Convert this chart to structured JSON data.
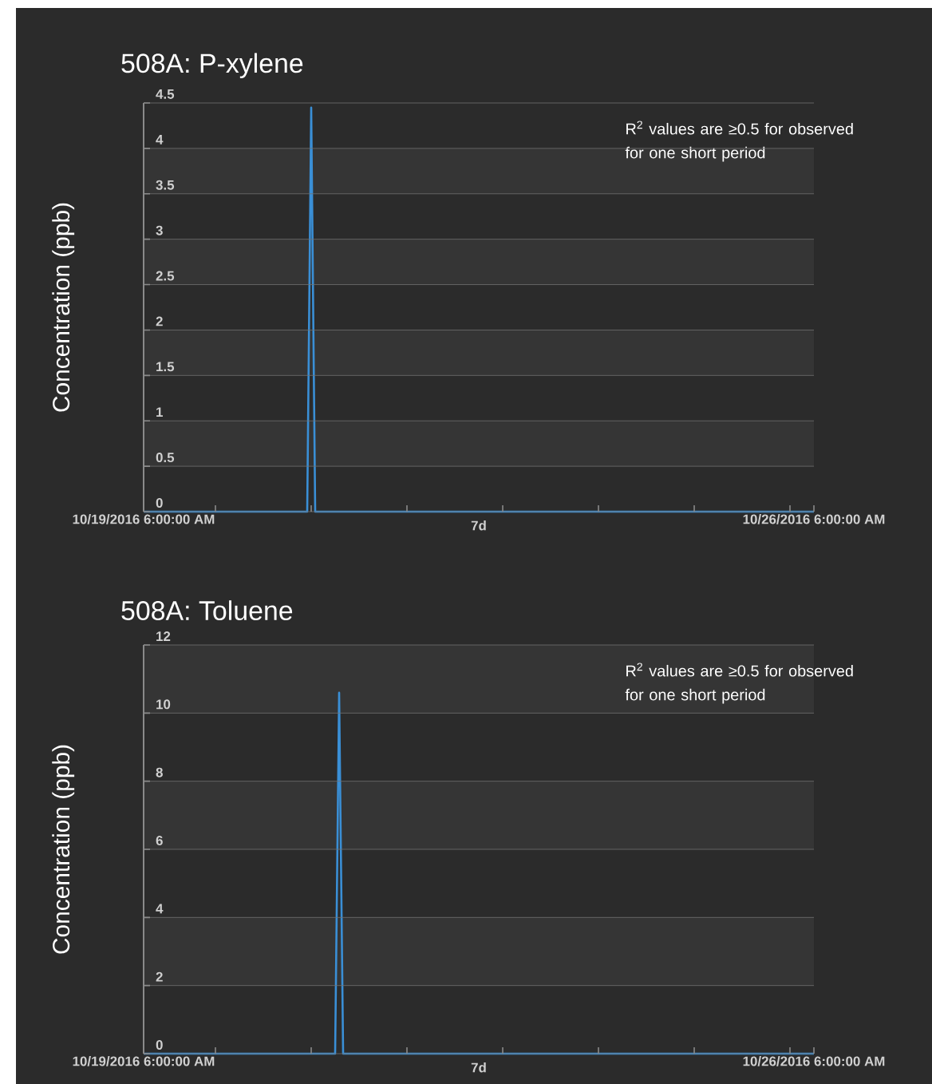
{
  "chart_data": [
    {
      "type": "line",
      "title": "508A: P-xylene",
      "xlabel": "7d",
      "ylabel": "Concentration (ppb)",
      "x": [
        "2016-10-19T06:00",
        "2016-10-20T23:00",
        "2016-10-21T00:00",
        "2016-10-21T01:00",
        "2016-10-26T06:00"
      ],
      "series": [
        {
          "color": "#3a8fd6",
          "values": [
            0,
            0,
            4.45,
            0,
            0
          ]
        }
      ],
      "xlim": [
        "2016-10-19T06:00",
        "2016-10-26T06:00"
      ],
      "xticks": [
        {
          "value": "2016-10-19T06:00",
          "label": "10/19/2016 6:00:00 AM"
        },
        {
          "value": "2016-10-20T00:00",
          "label": null
        },
        {
          "value": "2016-10-21T00:00",
          "label": null
        },
        {
          "value": "2016-10-22T00:00",
          "label": null
        },
        {
          "value": "2016-10-23T00:00",
          "label": null
        },
        {
          "value": "2016-10-24T00:00",
          "label": null
        },
        {
          "value": "2016-10-25T00:00",
          "label": null
        },
        {
          "value": "2016-10-26T00:00",
          "label": null
        },
        {
          "value": "2016-10-26T06:00",
          "label": "10/26/2016 6:00:00 AM"
        }
      ],
      "ylim": [
        0,
        4.5
      ],
      "yticks": [
        0,
        0.5,
        1,
        1.5,
        2,
        2.5,
        3,
        3.5,
        4,
        4.5
      ],
      "grid": "y",
      "line_style": "solid",
      "annotations": [
        "R$^{2}$ values are ≥0.5 for observed for one short period"
      ]
    },
    {
      "type": "line",
      "title": "508A: Toluene",
      "xlabel": "7d",
      "ylabel": "Concentration (ppb)",
      "x": [
        "2016-10-19T06:00",
        "2016-10-21T06:00",
        "2016-10-21T07:00",
        "2016-10-21T08:00",
        "2016-10-26T06:00"
      ],
      "series": [
        {
          "color": "#3a8fd6",
          "values": [
            0,
            0,
            10.6,
            0,
            0
          ]
        }
      ],
      "xlim": [
        "2016-10-19T06:00",
        "2016-10-26T06:00"
      ],
      "xticks": [
        {
          "value": "2016-10-19T06:00",
          "label": "10/19/2016 6:00:00 AM"
        },
        {
          "value": "2016-10-20T00:00",
          "label": null
        },
        {
          "value": "2016-10-21T00:00",
          "label": null
        },
        {
          "value": "2016-10-22T00:00",
          "label": null
        },
        {
          "value": "2016-10-23T00:00",
          "label": null
        },
        {
          "value": "2016-10-24T00:00",
          "label": null
        },
        {
          "value": "2016-10-25T00:00",
          "label": null
        },
        {
          "value": "2016-10-26T00:00",
          "label": null
        },
        {
          "value": "2016-10-26T06:00",
          "label": "10/26/2016 6:00:00 AM"
        }
      ],
      "ylim": [
        0,
        12
      ],
      "yticks": [
        0,
        2,
        4,
        6,
        8,
        10,
        12
      ],
      "grid": "y",
      "line_style": "solid",
      "annotations": [
        "R$^{2}$ values are ≥0.5 for observed for one short period"
      ]
    }
  ]
}
